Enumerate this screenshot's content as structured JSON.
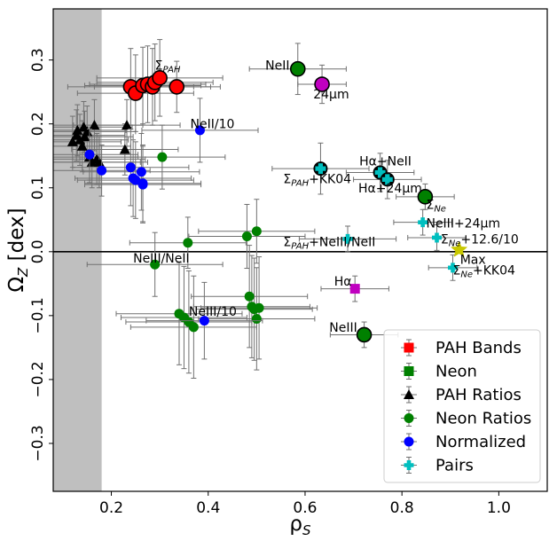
{
  "chart_data": {
    "type": "scatter",
    "xlabel": "ρ",
    "xlabel_sub": "S",
    "ylabel": "Ω",
    "ylabel_sub": "Z",
    "ylabel_suffix": " [dex]",
    "xlim": [
      0.08,
      1.1
    ],
    "ylim": [
      -0.375,
      0.38
    ],
    "xticks": [
      0.2,
      0.4,
      0.6,
      0.8,
      1.0
    ],
    "xtick_labels": [
      "0.2",
      "0.4",
      "0.6",
      "0.8",
      "1.0"
    ],
    "yticks": [
      -0.3,
      -0.2,
      -0.1,
      0.0,
      0.1,
      0.2,
      0.3
    ],
    "ytick_labels": [
      "−0.3",
      "−0.2",
      "−0.1",
      "0.0",
      "0.1",
      "0.2",
      "0.3"
    ],
    "shaded_region_x": [
      0.08,
      0.18
    ],
    "reference_line_y": 0.0,
    "legend_position": "lower-right",
    "legend": [
      {
        "label": "PAH Bands",
        "marker": "square",
        "color": "#ff0000"
      },
      {
        "label": "Neon",
        "marker": "square",
        "color": "#008000"
      },
      {
        "label": "PAH Ratios",
        "marker": "triangle",
        "color": "#000000"
      },
      {
        "label": "Neon Ratios",
        "marker": "circle",
        "color": "#008000"
      },
      {
        "label": "Normalized",
        "marker": "circle",
        "color": "#0000ff"
      },
      {
        "label": "Pairs",
        "marker": "plus",
        "color": "#00bfbf"
      }
    ],
    "series": [
      {
        "name": "PAH Bands",
        "color": "#ff0000",
        "marker": "circle-large",
        "x": [
          0.24,
          0.25,
          0.265,
          0.275,
          0.285,
          0.29,
          0.3,
          0.335
        ],
        "y": [
          0.258,
          0.248,
          0.26,
          0.262,
          0.258,
          0.265,
          0.272,
          0.258
        ],
        "xerr": [
          0.13,
          0.12,
          0.12,
          0.12,
          0.12,
          0.12,
          0.13,
          0.09
        ],
        "yerr": [
          0.06,
          0.06,
          0.06,
          0.06,
          0.06,
          0.06,
          0.06,
          0.04
        ]
      },
      {
        "name": "Neon",
        "color": "#008000",
        "marker": "circle-large",
        "x": [
          0.585,
          0.848,
          0.722
        ],
        "y": [
          0.286,
          0.086,
          -0.13
        ],
        "xerr": [
          0.1,
          0.06,
          0.07
        ],
        "yerr": [
          0.04,
          0.02,
          0.02
        ]
      },
      {
        "name": "Magenta",
        "color": "#c000c0",
        "marker": "circle-large",
        "x": [
          0.635
        ],
        "y": [
          0.262
        ],
        "xerr": [
          0.05
        ],
        "yerr": [
          0.03
        ]
      },
      {
        "name": "PAH Ratios",
        "color": "#000000",
        "marker": "triangle",
        "x": [
          0.12,
          0.128,
          0.13,
          0.135,
          0.14,
          0.143,
          0.145,
          0.15,
          0.155,
          0.16,
          0.165,
          0.17,
          0.175,
          0.232,
          0.228
        ],
        "y": [
          0.172,
          0.182,
          0.19,
          0.175,
          0.165,
          0.195,
          0.18,
          0.188,
          0.148,
          0.14,
          0.198,
          0.145,
          0.14,
          0.198,
          0.16
        ],
        "xerr": [
          0.1,
          0.1,
          0.1,
          0.1,
          0.1,
          0.1,
          0.1,
          0.1,
          0.1,
          0.1,
          0.1,
          0.1,
          0.1,
          0.11,
          0.11
        ],
        "yerr": [
          0.04,
          0.04,
          0.04,
          0.04,
          0.04,
          0.04,
          0.04,
          0.04,
          0.04,
          0.04,
          0.04,
          0.04,
          0.04,
          0.04,
          0.04
        ]
      },
      {
        "name": "Neon Ratios",
        "color": "#008000",
        "marker": "circle",
        "x": [
          0.29,
          0.305,
          0.358,
          0.48,
          0.5,
          0.34,
          0.35,
          0.36,
          0.37,
          0.485,
          0.49,
          0.495,
          0.5,
          0.505
        ],
        "y": [
          -0.02,
          0.148,
          0.014,
          0.024,
          0.032,
          -0.097,
          -0.103,
          -0.11,
          -0.118,
          -0.07,
          -0.086,
          -0.09,
          -0.105,
          -0.088
        ],
        "xerr": [
          0.14,
          0.13,
          0.12,
          0.12,
          0.12,
          0.13,
          0.13,
          0.13,
          0.13,
          0.12,
          0.12,
          0.12,
          0.12,
          0.12
        ],
        "yerr": [
          0.05,
          0.05,
          0.04,
          0.05,
          0.05,
          0.08,
          0.08,
          0.08,
          0.08,
          0.08,
          0.08,
          0.08,
          0.08,
          0.08
        ]
      },
      {
        "name": "Normalized",
        "color": "#0000ff",
        "marker": "circle",
        "x": [
          0.155,
          0.18,
          0.24,
          0.245,
          0.25,
          0.262,
          0.265,
          0.265,
          0.383,
          0.392
        ],
        "y": [
          0.152,
          0.127,
          0.132,
          0.115,
          0.112,
          0.125,
          0.107,
          0.105,
          0.19,
          -0.108
        ],
        "xerr": [
          0.1,
          0.1,
          0.12,
          0.12,
          0.12,
          0.12,
          0.12,
          0.12,
          0.12,
          0.12
        ],
        "yerr": [
          0.04,
          0.04,
          0.06,
          0.06,
          0.06,
          0.06,
          0.06,
          0.06,
          0.05,
          0.06
        ]
      },
      {
        "name": "Pairs (circled)",
        "color": "#00bfbf",
        "marker": "plus-large",
        "x": [
          0.632,
          0.755,
          0.77
        ],
        "y": [
          0.13,
          0.124,
          0.113
        ],
        "xerr": [
          0.1,
          0.07,
          0.07
        ],
        "yerr": [
          0.04,
          0.03,
          0.03
        ]
      },
      {
        "name": "Pairs",
        "color": "#00bfbf",
        "marker": "plus",
        "x": [
          0.688,
          0.843,
          0.872,
          0.905
        ],
        "y": [
          0.02,
          0.046,
          0.022,
          -0.025
        ],
        "xerr": [
          0.1,
          0.06,
          0.06,
          0.05
        ],
        "yerr": [
          0.02,
          0.02,
          0.02,
          0.02
        ]
      },
      {
        "name": "Max",
        "color": "#c8c800",
        "marker": "star",
        "x": [
          0.918
        ],
        "y": [
          0.003
        ],
        "xerr": [
          0
        ],
        "yerr": [
          0
        ]
      },
      {
        "name": "Hα",
        "color": "#c000c0",
        "marker": "square",
        "x": [
          0.703
        ],
        "y": [
          -0.058
        ],
        "xerr": [
          0.07
        ],
        "yerr": [
          0.02
        ]
      }
    ],
    "annotations": [
      {
        "text": "Σ",
        "sub": "PAH",
        "x": 0.29,
        "y": 0.285
      },
      {
        "text": "NeII",
        "x": 0.518,
        "y": 0.285
      },
      {
        "text": "24μm",
        "x": 0.617,
        "y": 0.24
      },
      {
        "text": "NeII/10",
        "x": 0.363,
        "y": 0.193
      },
      {
        "text": "Hα+NeII",
        "x": 0.712,
        "y": 0.135
      },
      {
        "text": "Σ",
        "sub": "PAH",
        "suffix": "+KK04",
        "x": 0.555,
        "y": 0.107
      },
      {
        "text": "Hα+24μm",
        "x": 0.71,
        "y": 0.093
      },
      {
        "text": "Σ",
        "sub": "Ne",
        "x": 0.85,
        "y": 0.067
      },
      {
        "text": "NeIII+24μm",
        "x": 0.85,
        "y": 0.038
      },
      {
        "text": "Σ",
        "sub": "PAH",
        "suffix": "+NeIII/NeII",
        "x": 0.555,
        "y": 0.009
      },
      {
        "text": "Σ",
        "sub": "Ne",
        "suffix": "+12.6/10",
        "x": 0.88,
        "y": 0.013
      },
      {
        "text": "NeIII/NeII",
        "x": 0.245,
        "y": -0.017
      },
      {
        "text": "Max",
        "x": 0.92,
        "y": -0.019
      },
      {
        "text": "Σ",
        "sub": "Ne",
        "suffix": "+KK04",
        "x": 0.905,
        "y": -0.036
      },
      {
        "text": "Hα",
        "x": 0.66,
        "y": -0.053
      },
      {
        "text": "NeIII/10",
        "x": 0.36,
        "y": -0.1
      },
      {
        "text": "NeIII",
        "x": 0.65,
        "y": -0.125
      }
    ]
  }
}
